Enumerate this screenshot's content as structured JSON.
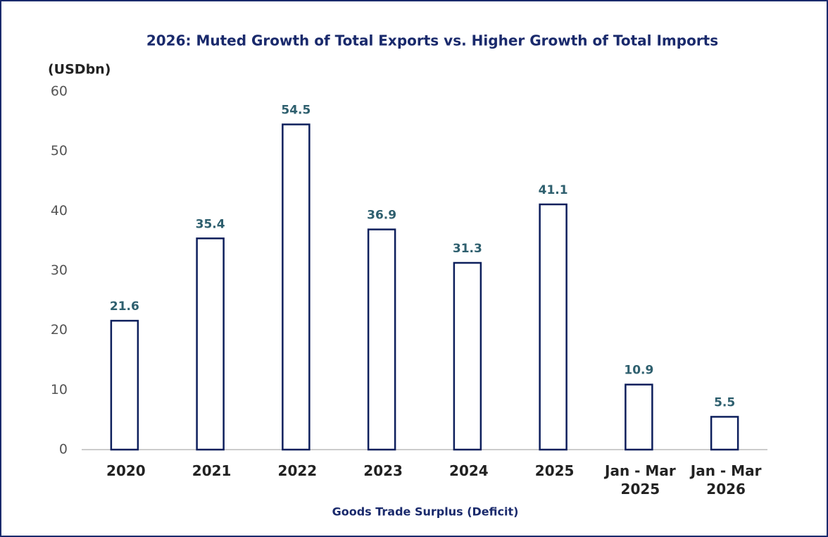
{
  "chart_data": {
    "type": "bar",
    "title": "2026: Muted Growth of Total Exports vs. Higher Growth of Total Imports",
    "y_label": "(USDbn)",
    "x_label": "Goods Trade Surplus (Deficit)",
    "categories": [
      "2020",
      "2021",
      "2022",
      "2023",
      "2024",
      "2025",
      "Jan - Mar 2025",
      "Jan - Mar 2026"
    ],
    "values": [
      21.6,
      35.4,
      54.5,
      36.9,
      31.3,
      41.1,
      10.9,
      5.5
    ],
    "color": "#0d1f5c",
    "ylim": [
      0,
      60
    ],
    "yticks": [
      0,
      10,
      20,
      30,
      40,
      50,
      60
    ],
    "grid": false
  }
}
